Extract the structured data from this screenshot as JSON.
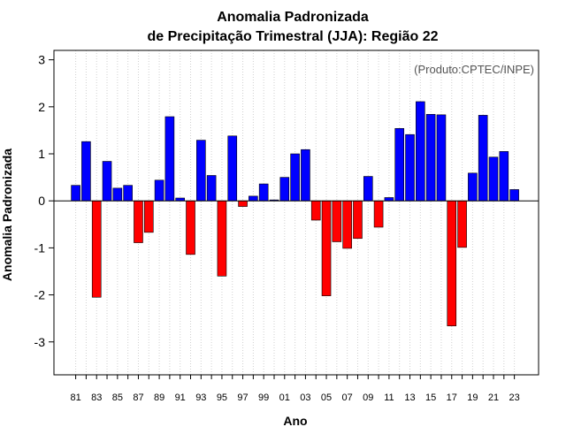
{
  "chart_data": {
    "type": "bar",
    "title_line1": "Anomalia Padronizada",
    "title_line2": "de Precipitação Trimestral (JJA): Região 22",
    "xlabel": "Ano",
    "ylabel": "Anomalia Padronizada",
    "credit": "(Produto:CPTEC/INPE)",
    "ylim": [
      -3.7,
      3.2
    ],
    "yticks": [
      -3,
      -2,
      -1,
      0,
      1,
      2,
      3
    ],
    "ytick_labels": [
      "-3",
      "-2",
      "-1",
      "0",
      "1",
      "2",
      "3"
    ],
    "categories": [
      "81",
      "82",
      "83",
      "84",
      "85",
      "86",
      "87",
      "88",
      "89",
      "90",
      "91",
      "92",
      "93",
      "94",
      "95",
      "96",
      "97",
      "98",
      "99",
      "00",
      "01",
      "02",
      "03",
      "04",
      "05",
      "06",
      "07",
      "08",
      "09",
      "10",
      "11",
      "12",
      "13",
      "14",
      "15",
      "16",
      "17",
      "18",
      "19",
      "20",
      "21",
      "22",
      "23"
    ],
    "xtick_labels": [
      "81",
      "83",
      "85",
      "87",
      "89",
      "91",
      "93",
      "95",
      "97",
      "99",
      "01",
      "03",
      "05",
      "07",
      "09",
      "11",
      "13",
      "15",
      "17",
      "19",
      "21",
      "23"
    ],
    "values": [
      0.33,
      1.26,
      -2.05,
      0.84,
      0.27,
      0.33,
      -0.89,
      -0.67,
      0.44,
      1.79,
      0.06,
      -1.14,
      1.29,
      0.54,
      -1.6,
      1.38,
      -0.12,
      0.1,
      0.36,
      0.02,
      0.5,
      1.0,
      1.09,
      -0.41,
      -2.02,
      -0.87,
      -1.01,
      -0.8,
      0.52,
      -0.56,
      0.07,
      1.54,
      1.41,
      2.11,
      1.84,
      1.83,
      -2.66,
      -0.99,
      0.59,
      1.82,
      0.93,
      1.05,
      0.24
    ],
    "positive_color": "#0000ff",
    "negative_color": "#ff0000",
    "grid": "vertical dotted"
  }
}
